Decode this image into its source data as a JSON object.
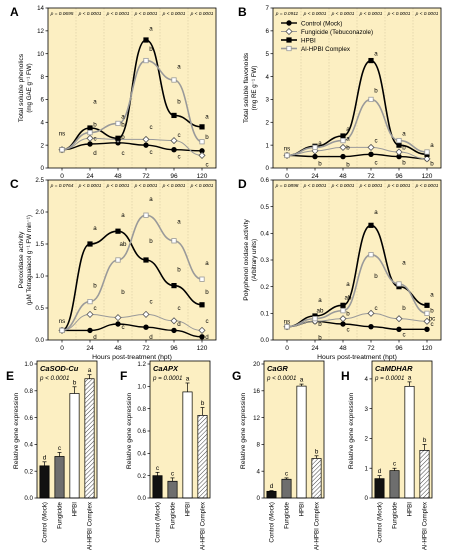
{
  "colors": {
    "panel_bg": "#fcefc2",
    "axis": "#000000",
    "control": "#000000",
    "fungicide": "#9a9a9a",
    "hpbi": "#ffffff",
    "complex": "#9a9a9a",
    "divider": "#d8c9a0"
  },
  "legend": {
    "placement": "panel B, top",
    "entries": [
      {
        "label": "Control (Mock)",
        "line": "solid-black",
        "marker": "filled-circle"
      },
      {
        "label": "Fungicide (Tebuconazole)",
        "line": "grey",
        "marker": "open-diamond"
      },
      {
        "label": "HPBI",
        "line": "solid-black",
        "marker": "filled-square"
      },
      {
        "label": "Al-HPBI Complex",
        "line": "grey",
        "marker": "open-square"
      }
    ]
  },
  "chart_data": [
    {
      "panel": "A",
      "type": "line",
      "xlabel": "Hours post-treatment (hpt)",
      "ylabel": [
        "Total soluble phenolics",
        "(mg GAE g⁻¹ FW)"
      ],
      "x": [
        0,
        24,
        48,
        72,
        96,
        120
      ],
      "xticks": [
        "0",
        "24",
        "48",
        "72",
        "96",
        "120"
      ],
      "ylim": [
        0,
        14
      ],
      "yticks": [
        0,
        2,
        4,
        6,
        8,
        10,
        12,
        14
      ],
      "pvalues": [
        "p = 0.0695",
        "p < 0.0001",
        "p < 0.0001",
        "p < 0.0001",
        "p < 0.0001",
        "p < 0.0001"
      ],
      "series": [
        {
          "name": "Control (Mock)",
          "values": [
            1.6,
            2.1,
            2.2,
            2.0,
            1.6,
            1.5
          ]
        },
        {
          "name": "Fungicide (Tebuconazole)",
          "values": [
            1.6,
            2.6,
            2.5,
            2.5,
            2.4,
            1.1
          ]
        },
        {
          "name": "HPBI",
          "values": [
            1.6,
            3.5,
            2.6,
            11.2,
            4.6,
            3.6
          ]
        },
        {
          "name": "Al-HPBI Complex",
          "values": [
            1.6,
            3.1,
            3.9,
            9.4,
            7.7,
            2.3
          ]
        }
      ],
      "letters": [
        {
          "x": 0,
          "y": 3.0,
          "t": "ns"
        },
        {
          "x": 24,
          "y": 5.8,
          "t": "a"
        },
        {
          "x": 24,
          "y": 3.8,
          "t": "b"
        },
        {
          "x": 24,
          "y": 2.6,
          "t": "c"
        },
        {
          "x": 24,
          "y": 1.3,
          "t": "d"
        },
        {
          "x": 48,
          "y": 4.5,
          "t": "a"
        },
        {
          "x": 48,
          "y": 3.8,
          "t": "b"
        },
        {
          "x": 48,
          "y": 2.7,
          "t": "b"
        },
        {
          "x": 48,
          "y": 1.3,
          "t": "c"
        },
        {
          "x": 72,
          "y": 12.2,
          "t": "a"
        },
        {
          "x": 72,
          "y": 10.4,
          "t": "b"
        },
        {
          "x": 72,
          "y": 3.6,
          "t": "c"
        },
        {
          "x": 72,
          "y": 1.4,
          "t": "c"
        },
        {
          "x": 96,
          "y": 8.9,
          "t": "a"
        },
        {
          "x": 96,
          "y": 5.8,
          "t": "b"
        },
        {
          "x": 96,
          "y": 2.9,
          "t": "c"
        },
        {
          "x": 96,
          "y": 1.0,
          "t": "c"
        },
        {
          "x": 120,
          "y": 4.5,
          "t": "a"
        },
        {
          "x": 120,
          "y": 2.7,
          "t": "b"
        },
        {
          "x": 120,
          "y": 0.3,
          "t": "c"
        }
      ]
    },
    {
      "panel": "B",
      "type": "line",
      "xlabel": "Hours post-treatment (hpt)",
      "ylabel": [
        "Total soluble flavonoids",
        "(mg RE g⁻¹ FW)"
      ],
      "x": [
        0,
        24,
        48,
        72,
        96,
        120
      ],
      "xticks": [
        "0",
        "24",
        "48",
        "72",
        "96",
        "120"
      ],
      "ylim": [
        0,
        7
      ],
      "yticks": [
        0,
        1,
        2,
        3,
        4,
        5,
        6,
        7
      ],
      "pvalues": [
        "p = 0.0911",
        "p < 0.0001",
        "p < 0.0001",
        "p < 0.0001",
        "p < 0.0001",
        "p < 0.0001"
      ],
      "series": [
        {
          "name": "Control (Mock)",
          "values": [
            0.55,
            0.5,
            0.5,
            0.6,
            0.5,
            0.4
          ]
        },
        {
          "name": "Fungicide (Tebuconazole)",
          "values": [
            0.55,
            0.75,
            0.9,
            0.9,
            0.7,
            0.4
          ]
        },
        {
          "name": "HPBI",
          "values": [
            0.55,
            0.95,
            1.4,
            4.7,
            1.0,
            0.6
          ]
        },
        {
          "name": "Al-HPBI Complex",
          "values": [
            0.55,
            0.9,
            1.2,
            3.0,
            1.2,
            0.7
          ]
        }
      ],
      "letters": [
        {
          "x": 0,
          "y": 0.85,
          "t": "ns"
        },
        {
          "x": 24,
          "y": 1.1,
          "t": "a"
        },
        {
          "x": 24,
          "y": 0.2,
          "t": "b"
        },
        {
          "x": 48,
          "y": 1.7,
          "t": "a"
        },
        {
          "x": 48,
          "y": 1.3,
          "t": "a"
        },
        {
          "x": 48,
          "y": 0.9,
          "t": "b"
        },
        {
          "x": 48,
          "y": 0.15,
          "t": "b"
        },
        {
          "x": 72,
          "y": 5.0,
          "t": "a"
        },
        {
          "x": 72,
          "y": 3.4,
          "t": "b"
        },
        {
          "x": 72,
          "y": 1.2,
          "t": "c"
        },
        {
          "x": 72,
          "y": 0.25,
          "t": "c"
        },
        {
          "x": 96,
          "y": 1.5,
          "t": "a"
        },
        {
          "x": 96,
          "y": 0.9,
          "t": "b"
        },
        {
          "x": 96,
          "y": 0.25,
          "t": "b"
        },
        {
          "x": 120,
          "y": 1.0,
          "t": "a"
        },
        {
          "x": 120,
          "y": 0.2,
          "t": "b"
        }
      ]
    },
    {
      "panel": "C",
      "type": "line",
      "xlabel": "Hours post-treatment (hpt)",
      "ylabel": [
        "Peroxidase activity",
        "(μM Tetraguaiacol g⁻¹ FW min⁻¹)"
      ],
      "x": [
        0,
        24,
        48,
        72,
        96,
        120
      ],
      "xticks": [
        "0",
        "24",
        "48",
        "72",
        "96",
        "120"
      ],
      "ylim": [
        0,
        2.5
      ],
      "yticks": [
        0.0,
        0.5,
        1.0,
        1.5,
        2.0,
        2.5
      ],
      "pvalues": [
        "p = 0.0764",
        "p < 0.0001",
        "p < 0.0001",
        "p < 0.0001",
        "p < 0.0001",
        "p < 0.0001"
      ],
      "series": [
        {
          "name": "Control (Mock)",
          "values": [
            0.15,
            0.15,
            0.25,
            0.2,
            0.15,
            0.05
          ]
        },
        {
          "name": "Fungicide (Tebuconazole)",
          "values": [
            0.15,
            0.4,
            0.35,
            0.4,
            0.3,
            0.15
          ]
        },
        {
          "name": "HPBI",
          "values": [
            0.15,
            1.5,
            1.7,
            1.25,
            0.85,
            0.55
          ]
        },
        {
          "name": "Al-HPBI Complex",
          "values": [
            0.15,
            0.6,
            1.25,
            1.95,
            1.55,
            0.95
          ]
        }
      ],
      "letters": [
        {
          "x": 0,
          "y": 0.3,
          "t": "ns"
        },
        {
          "x": 24,
          "y": 1.75,
          "t": "a"
        },
        {
          "x": 24,
          "y": 0.85,
          "t": "b"
        },
        {
          "x": 24,
          "y": 0.5,
          "t": "c"
        },
        {
          "x": 24,
          "y": 0.05,
          "t": "d"
        },
        {
          "x": 48,
          "y": 1.95,
          "t": "a"
        },
        {
          "x": 48,
          "y": 1.5,
          "t": "ab"
        },
        {
          "x": 48,
          "y": 0.75,
          "t": "b"
        },
        {
          "x": 48,
          "y": 0.2,
          "t": "c"
        },
        {
          "x": 72,
          "y": 2.2,
          "t": "a"
        },
        {
          "x": 72,
          "y": 1.55,
          "t": "b"
        },
        {
          "x": 72,
          "y": 0.6,
          "t": "c"
        },
        {
          "x": 72,
          "y": 0.05,
          "t": "d"
        },
        {
          "x": 96,
          "y": 1.85,
          "t": "a"
        },
        {
          "x": 96,
          "y": 1.1,
          "t": "b"
        },
        {
          "x": 96,
          "y": 0.5,
          "t": "c"
        },
        {
          "x": 96,
          "y": 0.25,
          "t": "d"
        },
        {
          "x": 120,
          "y": 1.2,
          "t": "a"
        },
        {
          "x": 120,
          "y": 0.75,
          "t": "b"
        },
        {
          "x": 120,
          "y": 0.3,
          "t": "c"
        },
        {
          "x": 120,
          "y": 0.05,
          "t": "d"
        }
      ]
    },
    {
      "panel": "D",
      "type": "line",
      "xlabel": "Hours post-treatment (hpt)",
      "ylabel": [
        "Polyphenol oxidase activity",
        "(Arbitrary units)"
      ],
      "x": [
        0,
        24,
        48,
        72,
        96,
        120
      ],
      "xticks": [
        "0",
        "24",
        "48",
        "72",
        "96",
        "120"
      ],
      "ylim": [
        0,
        0.6
      ],
      "yticks": [
        0.0,
        0.1,
        0.2,
        0.3,
        0.4,
        0.5,
        0.6
      ],
      "pvalues": [
        "p = 0.0898",
        "p < 0.0001",
        "p < 0.0001",
        "p < 0.0001",
        "p < 0.0001",
        "p < 0.0001"
      ],
      "series": [
        {
          "name": "Control (Mock)",
          "values": [
            0.05,
            0.07,
            0.06,
            0.05,
            0.04,
            0.04
          ]
        },
        {
          "name": "Fungicide (Tebuconazole)",
          "values": [
            0.05,
            0.07,
            0.08,
            0.1,
            0.08,
            0.07
          ]
        },
        {
          "name": "HPBI",
          "values": [
            0.05,
            0.09,
            0.13,
            0.43,
            0.2,
            0.13
          ]
        },
        {
          "name": "Al-HPBI Complex",
          "values": [
            0.05,
            0.08,
            0.11,
            0.32,
            0.21,
            0.1
          ]
        }
      ],
      "letters": [
        {
          "x": 0,
          "y": 0.07,
          "t": "ns"
        },
        {
          "x": 24,
          "y": 0.15,
          "t": "a"
        },
        {
          "x": 24,
          "y": 0.11,
          "t": "ab"
        },
        {
          "x": 24,
          "y": 0.06,
          "t": "b"
        },
        {
          "x": 24,
          "y": 0.01,
          "t": "b"
        },
        {
          "x": 48,
          "y": 0.21,
          "t": "a"
        },
        {
          "x": 48,
          "y": 0.16,
          "t": "ab"
        },
        {
          "x": 48,
          "y": 0.1,
          "t": "b"
        },
        {
          "x": 48,
          "y": 0.04,
          "t": "c"
        },
        {
          "x": 72,
          "y": 0.48,
          "t": "a"
        },
        {
          "x": 72,
          "y": 0.24,
          "t": "b"
        },
        {
          "x": 72,
          "y": 0.12,
          "t": "c"
        },
        {
          "x": 96,
          "y": 0.29,
          "t": "a"
        },
        {
          "x": 96,
          "y": 0.12,
          "t": "b"
        },
        {
          "x": 96,
          "y": 0.02,
          "t": "c"
        },
        {
          "x": 120,
          "y": 0.17,
          "t": "a"
        },
        {
          "x": 120,
          "y": 0.11,
          "t": "b"
        },
        {
          "x": 120,
          "y": 0.08,
          "t": "bc"
        },
        {
          "x": 120,
          "y": 0.06,
          "t": "c"
        }
      ]
    },
    {
      "panel": "E",
      "type": "bar",
      "title": "CaSOD-Cu",
      "pvalue": "p < 0.0001",
      "ylabel": "Relative gene expression",
      "categories": [
        "Control (Mock)",
        "Fungicide",
        "HPBI",
        "Al-HPBI Complex"
      ],
      "values": [
        0.24,
        0.31,
        0.78,
        0.89
      ],
      "errors": [
        0.03,
        0.03,
        0.05,
        0.03
      ],
      "letters": [
        "d",
        "c",
        "b",
        "a"
      ],
      "ylim": [
        0,
        1.0
      ],
      "yticks": [
        "0.0",
        "0.2",
        "0.4",
        "0.6",
        "0.8",
        "1.0"
      ],
      "ytick_values": [
        0,
        0.2,
        0.4,
        0.6,
        0.8,
        1.0
      ]
    },
    {
      "panel": "F",
      "type": "bar",
      "title": "CaAPX",
      "pvalue": "p = 0.0001",
      "ylabel": "Relative gene expression",
      "categories": [
        "Control (Mock)",
        "Fungicide",
        "HPBI",
        "Al-HPBI Complex"
      ],
      "values": [
        0.2,
        0.15,
        0.95,
        0.74
      ],
      "errors": [
        0.03,
        0.03,
        0.08,
        0.07
      ],
      "letters": [
        "c",
        "c",
        "a",
        "b"
      ],
      "ylim": [
        0,
        1.2
      ],
      "yticks": [
        "0.0",
        "0.2",
        "0.4",
        "0.6",
        "0.8",
        "1.0",
        "1.2"
      ],
      "ytick_values": [
        0,
        0.2,
        0.4,
        0.6,
        0.8,
        1.0,
        1.2
      ]
    },
    {
      "panel": "G",
      "type": "bar",
      "title": "CaGR",
      "pvalue": "p < 0.0001",
      "ylabel": "Relative gene expression",
      "categories": [
        "Control (Mock)",
        "Fungicide",
        "HPBI",
        "Al-HPBI Complex"
      ],
      "values": [
        1.0,
        2.8,
        16.7,
        5.9
      ],
      "errors": [
        0.1,
        0.2,
        0.3,
        0.4
      ],
      "letters": [
        "d",
        "c",
        "a",
        "b"
      ],
      "ylim": [
        0,
        20
      ],
      "yticks": [
        "0",
        "4",
        "8",
        "12",
        "16",
        "20"
      ],
      "ytick_values": [
        0,
        4,
        8,
        12,
        16,
        20
      ]
    },
    {
      "panel": "H",
      "type": "bar",
      "title": "CaMDHAR",
      "pvalue": "p = 0.0001",
      "ylabel": "Relative gene expression",
      "categories": [
        "Control (Mock)",
        "Fungicide",
        "HPBI",
        "Al-HPBI Complex"
      ],
      "values": [
        0.65,
        0.92,
        3.75,
        1.6
      ],
      "errors": [
        0.1,
        0.08,
        0.15,
        0.2
      ],
      "letters": [
        "d",
        "c",
        "a",
        "b"
      ],
      "ylim": [
        0,
        4.5
      ],
      "yticks": [
        "0",
        "1",
        "2",
        "3",
        "4"
      ],
      "ytick_values": [
        0,
        1,
        2,
        3,
        4
      ]
    }
  ]
}
